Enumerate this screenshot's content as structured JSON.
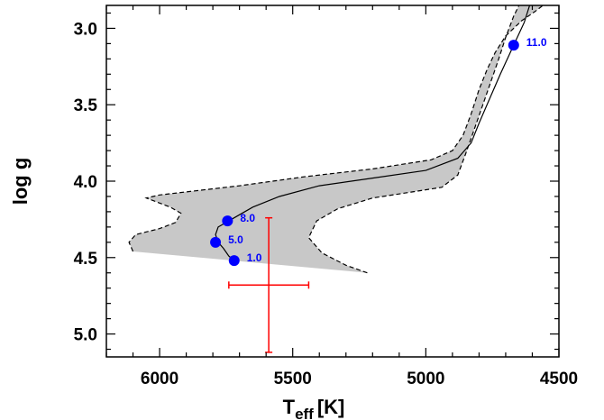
{
  "chart_data": {
    "type": "line",
    "title": "",
    "xlabel": "T",
    "xlabel_sub": "eff",
    "xlabel_unit": "[K]",
    "ylabel": "log g",
    "xlim": [
      6200,
      4500
    ],
    "ylim": [
      2.85,
      5.15
    ],
    "x_inverted": true,
    "y_inverted": true,
    "x_ticks": [
      "6000",
      "5500",
      "5000",
      "4500"
    ],
    "x_tick_values": [
      6000,
      5500,
      5000,
      4500
    ],
    "y_ticks": [
      "3.0",
      "3.5",
      "4.0",
      "4.5",
      "5.0"
    ],
    "y_tick_values": [
      3.0,
      3.5,
      4.0,
      4.5,
      5.0
    ],
    "grid": false,
    "legend": "none",
    "colors": {
      "track": "#000000",
      "band_fill": "#c8c8c8",
      "band_edge": "#000000",
      "age_points": "#0000ff",
      "error_bar": "#ff0000"
    },
    "track": {
      "x": [
        5720,
        5740,
        5760,
        5780,
        5790,
        5780,
        5740,
        5700,
        5650,
        5550,
        5400,
        5200,
        5000,
        4880,
        4830,
        4800,
        4760,
        4720,
        4670,
        4630,
        4610
      ],
      "y": [
        4.52,
        4.49,
        4.44,
        4.4,
        4.35,
        4.3,
        4.26,
        4.22,
        4.17,
        4.1,
        4.03,
        3.98,
        3.93,
        3.85,
        3.75,
        3.62,
        3.46,
        3.3,
        3.11,
        2.96,
        2.85
      ]
    },
    "band": {
      "upper_edge": {
        "x": [
          6100,
          6115,
          6090,
          6000,
          5940,
          5920,
          5960,
          6050,
          6000,
          5900,
          5700,
          5450,
          5200,
          4980,
          4900,
          4860,
          4830,
          4800,
          4770,
          4740,
          4700,
          4640,
          4590,
          4560
        ],
        "y": [
          4.46,
          4.4,
          4.35,
          4.31,
          4.27,
          4.21,
          4.17,
          4.11,
          4.09,
          4.07,
          4.03,
          3.97,
          3.92,
          3.86,
          3.8,
          3.7,
          3.56,
          3.4,
          3.27,
          3.16,
          3.05,
          2.95,
          2.89,
          2.85
        ]
      },
      "lower_edge": {
        "x": [
          5220,
          5300,
          5390,
          5440,
          5410,
          5330,
          5200,
          5050,
          4940,
          4880,
          4850,
          4810,
          4770,
          4730,
          4700,
          4670,
          4650
        ],
        "y": [
          4.6,
          4.55,
          4.47,
          4.37,
          4.26,
          4.18,
          4.11,
          4.07,
          4.04,
          3.96,
          3.82,
          3.62,
          3.42,
          3.22,
          3.06,
          2.92,
          2.85
        ]
      },
      "bottom_edge": {
        "x": [
          6100,
          5220
        ],
        "y": [
          4.46,
          4.6
        ]
      }
    },
    "age_points": [
      {
        "label": "1.0",
        "x": 5720,
        "y": 4.52
      },
      {
        "label": "5.0",
        "x": 5790,
        "y": 4.4
      },
      {
        "label": "8.0",
        "x": 5745,
        "y": 4.26
      },
      {
        "label": "11.0",
        "x": 4670,
        "y": 3.11
      }
    ],
    "error_bar": {
      "x": 5590,
      "y": 4.68,
      "x_min": 5740,
      "x_max": 5440,
      "y_min": 4.24,
      "y_max": 5.12
    }
  }
}
